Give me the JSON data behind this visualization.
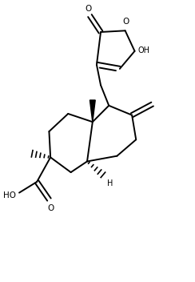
{
  "background": "#ffffff",
  "line_color": "#000000",
  "lw": 1.4,
  "figsize": [
    2.44,
    3.52
  ],
  "dpi": 100,
  "xlim": [
    0,
    7
  ],
  "ylim": [
    0,
    10
  ]
}
